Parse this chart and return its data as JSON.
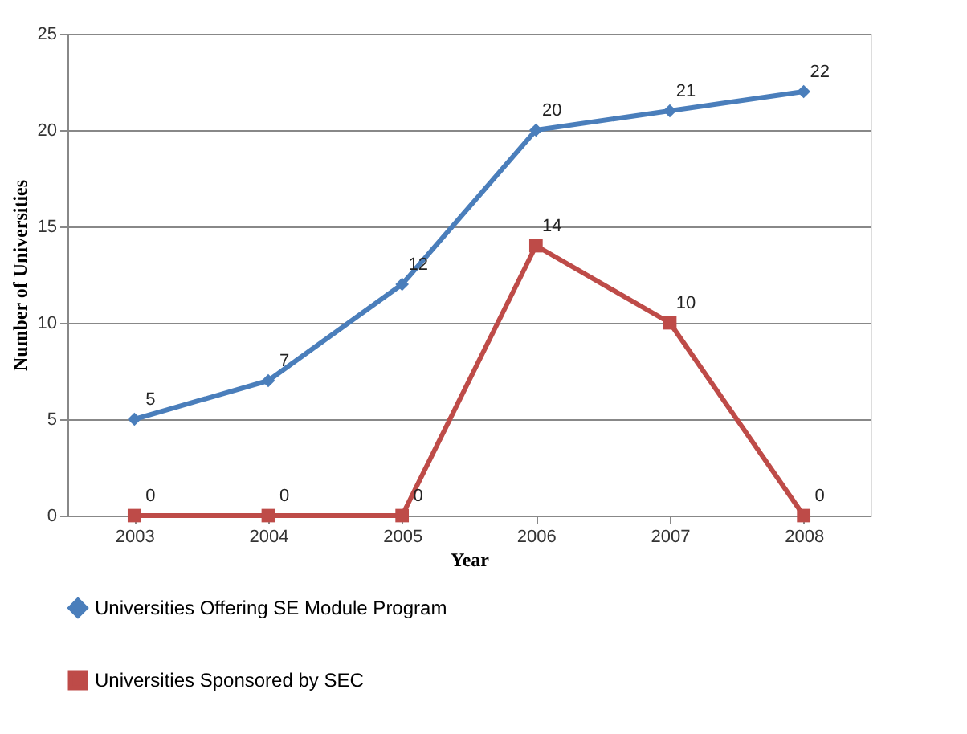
{
  "chart_data": {
    "type": "line",
    "xlabel": "Year",
    "ylabel": "Number of Universities",
    "categories": [
      "2003",
      "2004",
      "2005",
      "2006",
      "2007",
      "2008"
    ],
    "series": [
      {
        "name": "Universities Offering SE Module Program",
        "color": "#4a7ebb",
        "marker": "diamond",
        "values": [
          5,
          7,
          12,
          20,
          21,
          22
        ]
      },
      {
        "name": "Universities Sponsored by SEC",
        "color": "#be4b48",
        "marker": "square",
        "values": [
          0,
          0,
          0,
          14,
          10,
          0
        ]
      }
    ],
    "ylim": [
      0,
      25
    ],
    "yticks": [
      0,
      5,
      10,
      15,
      20,
      25
    ],
    "grid": "y",
    "legend": "bottom",
    "data_labels": true
  }
}
